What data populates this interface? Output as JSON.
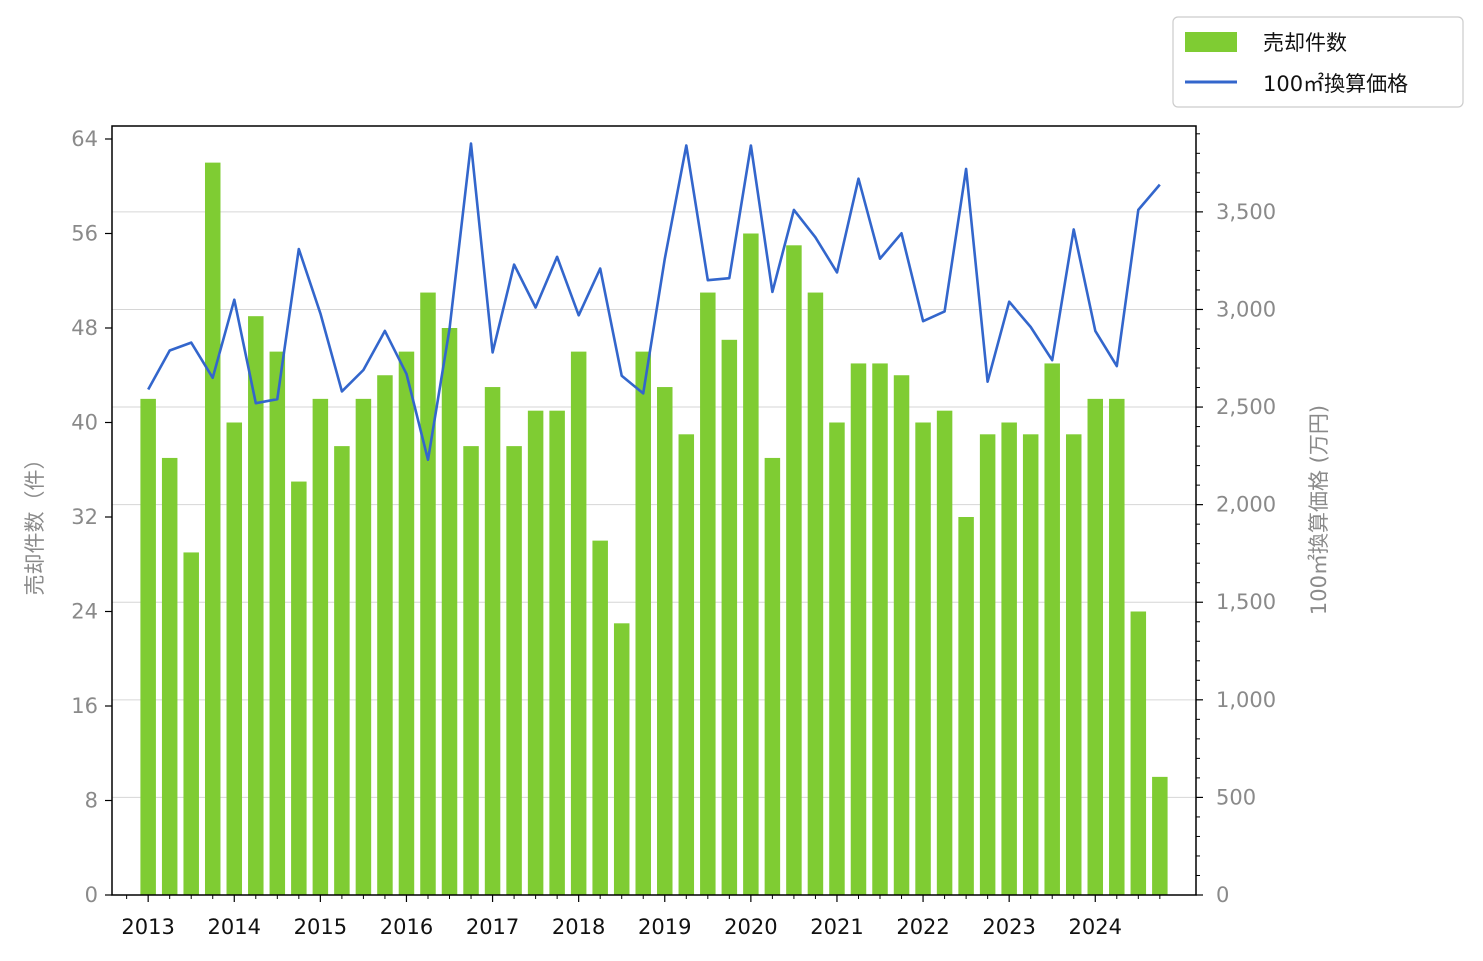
{
  "chart_data": {
    "type": "bar",
    "x": [
      2013.0,
      2013.25,
      2013.5,
      2013.75,
      2014.0,
      2014.25,
      2014.5,
      2014.75,
      2015.0,
      2015.25,
      2015.5,
      2015.75,
      2016.0,
      2016.25,
      2016.5,
      2016.75,
      2017.0,
      2017.25,
      2017.5,
      2017.75,
      2018.0,
      2018.25,
      2018.5,
      2018.75,
      2019.0,
      2019.25,
      2019.5,
      2019.75,
      2020.0,
      2020.25,
      2020.5,
      2020.75,
      2021.0,
      2021.25,
      2021.5,
      2021.75,
      2022.0,
      2022.25,
      2022.5,
      2022.75,
      2023.0,
      2023.25,
      2023.5,
      2023.75,
      2024.0,
      2024.25,
      2024.5,
      2024.75
    ],
    "series": [
      {
        "name": "売却件数",
        "type": "bar",
        "axis": "left",
        "color": "#7fcc33",
        "values": [
          42,
          37,
          29,
          62,
          40,
          49,
          46,
          35,
          42,
          38,
          42,
          44,
          46,
          51,
          48,
          38,
          43,
          38,
          41,
          41,
          46,
          30,
          23,
          46,
          43,
          39,
          51,
          47,
          56,
          37,
          55,
          51,
          40,
          45,
          45,
          44,
          40,
          41,
          32,
          39,
          40,
          39,
          45,
          39,
          42,
          42,
          24,
          10
        ]
      },
      {
        "name": "100㎡換算価格",
        "type": "line",
        "axis": "right",
        "color": "#3366cc",
        "values": [
          2590,
          2790,
          2830,
          2650,
          3050,
          2520,
          2540,
          3310,
          2980,
          2580,
          2690,
          2890,
          2670,
          2230,
          2900,
          3850,
          2780,
          3230,
          3010,
          3270,
          2970,
          3210,
          2660,
          2570,
          3260,
          3840,
          3150,
          3160,
          3840,
          3090,
          3510,
          3370,
          3190,
          3670,
          3260,
          3390,
          2940,
          2990,
          3720,
          2630,
          3040,
          2910,
          2740,
          3410,
          2890,
          2710,
          3510,
          3640
        ]
      }
    ],
    "x_tick_labels": [
      "2013",
      "2014",
      "2015",
      "2016",
      "2017",
      "2018",
      "2019",
      "2020",
      "2021",
      "2022",
      "2023",
      "2024"
    ],
    "x_ticks": [
      2013,
      2014,
      2015,
      2016,
      2017,
      2018,
      2019,
      2020,
      2021,
      2022,
      2023,
      2024
    ],
    "xlim": [
      2012.58,
      2025.17
    ],
    "left_axis": {
      "label": "売却件数（件）",
      "ylim": [
        0,
        65.1
      ],
      "ticks": [
        0,
        8,
        16,
        24,
        32,
        40,
        48,
        56,
        64
      ],
      "tick_labels": [
        "0",
        "8",
        "16",
        "24",
        "32",
        "40",
        "48",
        "56",
        "64"
      ]
    },
    "right_axis": {
      "label": "100㎡換算価格 (万円)",
      "ylim": [
        0,
        3940
      ],
      "ticks": [
        0,
        500,
        1000,
        1500,
        2000,
        2500,
        3000,
        3500
      ],
      "tick_labels": [
        "0",
        "500",
        "1,000",
        "1,500",
        "2,000",
        "2,500",
        "3,000",
        "3,500"
      ]
    },
    "grid": "horizontal, right axis",
    "legend": "top-right, outside plot"
  }
}
